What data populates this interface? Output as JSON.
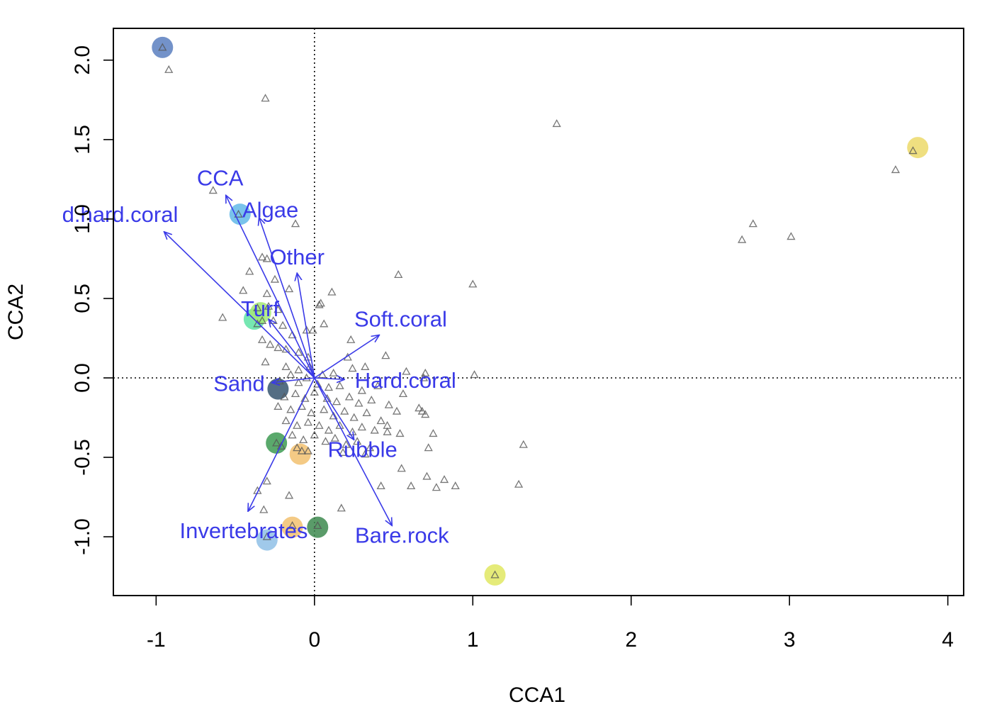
{
  "chart_data": {
    "type": "scatter",
    "title": "",
    "xlabel": "CCA1",
    "ylabel": "CCA2",
    "xlim": [
      -1.27,
      4.1
    ],
    "ylim": [
      -1.37,
      2.2
    ],
    "x_ticks": [
      {
        "value": -1,
        "label": "-1"
      },
      {
        "value": 0,
        "label": "0"
      },
      {
        "value": 1,
        "label": "1"
      },
      {
        "value": 2,
        "label": "2"
      },
      {
        "value": 3,
        "label": "3"
      },
      {
        "value": 4,
        "label": "4"
      }
    ],
    "y_ticks": [
      {
        "value": -1.0,
        "label": "-1.0"
      },
      {
        "value": -0.5,
        "label": "-0.5"
      },
      {
        "value": 0.0,
        "label": "0.0"
      },
      {
        "value": 0.5,
        "label": "0.5"
      },
      {
        "value": 1.0,
        "label": "1.0"
      },
      {
        "value": 1.5,
        "label": "1.5"
      },
      {
        "value": 2.0,
        "label": "2.0"
      }
    ],
    "reference_lines": {
      "x": 0,
      "y": 0,
      "style": "dotted"
    },
    "grid": false,
    "legend": "none",
    "colors": {
      "arrows": "#3a3ae8",
      "points": "#555555"
    },
    "arrows": [
      {
        "label": "CCA",
        "x": -0.56,
        "y": 1.15
      },
      {
        "label": "Algae",
        "x": -0.35,
        "y": 1.01
      },
      {
        "label": "d.hard.coral",
        "x": -0.95,
        "y": 0.92
      },
      {
        "label": "Other",
        "x": -0.11,
        "y": 0.66
      },
      {
        "label": "Turf",
        "x": -0.29,
        "y": 0.37
      },
      {
        "label": "Soft.coral",
        "x": 0.41,
        "y": 0.27
      },
      {
        "label": "Sand",
        "x": -0.27,
        "y": -0.03
      },
      {
        "label": "Hard.coral",
        "x": 0.19,
        "y": -0.01
      },
      {
        "label": "Rubble",
        "x": 0.25,
        "y": -0.39
      },
      {
        "label": "Invertebrates",
        "x": -0.42,
        "y": -0.84
      },
      {
        "label": "Bare.rock",
        "x": 0.49,
        "y": -0.93
      }
    ],
    "highlight_points": [
      {
        "x": -0.96,
        "y": 2.08,
        "color": "#5b7fbf"
      },
      {
        "x": 3.81,
        "y": 1.45,
        "color": "#ecd96a"
      },
      {
        "x": -0.47,
        "y": 1.03,
        "color": "#62b8e8"
      },
      {
        "x": -0.38,
        "y": 0.37,
        "color": "#5ee3a4"
      },
      {
        "x": -0.34,
        "y": 0.41,
        "color": "#a6e876"
      },
      {
        "x": -0.23,
        "y": -0.07,
        "color": "#36556e"
      },
      {
        "x": -0.24,
        "y": -0.41,
        "color": "#3d9a52"
      },
      {
        "x": -0.09,
        "y": -0.48,
        "color": "#f2c170"
      },
      {
        "x": -0.14,
        "y": -0.94,
        "color": "#f2c170"
      },
      {
        "x": 0.02,
        "y": -0.94,
        "color": "#3d8a4f"
      },
      {
        "x": -0.3,
        "y": -1.02,
        "color": "#8fc0e6"
      },
      {
        "x": 1.14,
        "y": -1.24,
        "color": "#e1e861"
      }
    ],
    "site_points": [
      [
        -0.96,
        2.08
      ],
      [
        -0.92,
        1.94
      ],
      [
        -0.31,
        1.76
      ],
      [
        1.53,
        1.6
      ],
      [
        3.78,
        1.43
      ],
      [
        3.67,
        1.31
      ],
      [
        -0.64,
        1.18
      ],
      [
        -0.48,
        1.03
      ],
      [
        -0.12,
        0.97
      ],
      [
        2.77,
        0.97
      ],
      [
        3.01,
        0.89
      ],
      [
        2.7,
        0.87
      ],
      [
        -0.33,
        0.76
      ],
      [
        -0.3,
        0.75
      ],
      [
        -0.41,
        0.67
      ],
      [
        -0.25,
        0.62
      ],
      [
        -0.16,
        0.56
      ],
      [
        0.53,
        0.65
      ],
      [
        1.0,
        0.59
      ],
      [
        -0.45,
        0.55
      ],
      [
        -0.3,
        0.53
      ],
      [
        0.11,
        0.54
      ],
      [
        0.04,
        0.47
      ],
      [
        0.03,
        0.46
      ],
      [
        -0.29,
        0.45
      ],
      [
        -0.23,
        0.43
      ],
      [
        -0.58,
        0.38
      ],
      [
        -0.36,
        0.44
      ],
      [
        -0.33,
        0.36
      ],
      [
        -0.26,
        0.36
      ],
      [
        -0.2,
        0.33
      ],
      [
        -0.14,
        0.27
      ],
      [
        -0.05,
        0.3
      ],
      [
        -0.01,
        0.3
      ],
      [
        0.06,
        0.34
      ],
      [
        0.23,
        0.24
      ],
      [
        -0.33,
        0.24
      ],
      [
        -0.28,
        0.21
      ],
      [
        -0.23,
        0.19
      ],
      [
        -0.18,
        0.18
      ],
      [
        -0.1,
        0.16
      ],
      [
        -0.04,
        0.13
      ],
      [
        -0.31,
        0.1
      ],
      [
        -0.18,
        0.07
      ],
      [
        -0.1,
        0.05
      ],
      [
        -0.03,
        0.07
      ],
      [
        0.21,
        0.13
      ],
      [
        0.45,
        0.14
      ],
      [
        -0.15,
        0.02
      ],
      [
        -0.05,
        0.0
      ],
      [
        0.05,
        0.02
      ],
      [
        0.12,
        0.03
      ],
      [
        0.24,
        0.06
      ],
      [
        0.32,
        0.07
      ],
      [
        0.58,
        0.04
      ],
      [
        0.7,
        0.03
      ],
      [
        0.69,
        0.0
      ],
      [
        1.01,
        0.02
      ],
      [
        -0.22,
        -0.02
      ],
      [
        -0.1,
        -0.03
      ],
      [
        0.02,
        -0.04
      ],
      [
        0.09,
        -0.06
      ],
      [
        0.16,
        -0.05
      ],
      [
        0.3,
        -0.08
      ],
      [
        0.4,
        -0.05
      ],
      [
        0.56,
        -0.1
      ],
      [
        -0.19,
        -0.12
      ],
      [
        -0.12,
        -0.1
      ],
      [
        -0.06,
        -0.13
      ],
      [
        0.0,
        -0.09
      ],
      [
        0.08,
        -0.13
      ],
      [
        0.14,
        -0.15
      ],
      [
        0.22,
        -0.12
      ],
      [
        0.28,
        -0.16
      ],
      [
        0.36,
        -0.14
      ],
      [
        0.47,
        -0.17
      ],
      [
        -0.23,
        -0.18
      ],
      [
        -0.15,
        -0.2
      ],
      [
        -0.08,
        -0.18
      ],
      [
        -0.02,
        -0.22
      ],
      [
        0.06,
        -0.2
      ],
      [
        0.12,
        -0.24
      ],
      [
        0.19,
        -0.21
      ],
      [
        0.25,
        -0.25
      ],
      [
        0.33,
        -0.22
      ],
      [
        0.42,
        -0.27
      ],
      [
        0.52,
        -0.21
      ],
      [
        0.66,
        -0.19
      ],
      [
        0.7,
        -0.23
      ],
      [
        -0.18,
        -0.27
      ],
      [
        -0.11,
        -0.3
      ],
      [
        -0.04,
        -0.28
      ],
      [
        0.03,
        -0.3
      ],
      [
        0.09,
        -0.33
      ],
      [
        0.16,
        -0.3
      ],
      [
        0.24,
        -0.34
      ],
      [
        0.3,
        -0.31
      ],
      [
        0.38,
        -0.33
      ],
      [
        0.46,
        -0.3
      ],
      [
        0.54,
        -0.35
      ],
      [
        0.68,
        -0.21
      ],
      [
        -0.14,
        -0.36
      ],
      [
        -0.07,
        -0.39
      ],
      [
        0.0,
        -0.36
      ],
      [
        0.07,
        -0.4
      ],
      [
        0.13,
        -0.38
      ],
      [
        0.2,
        -0.42
      ],
      [
        0.27,
        -0.4
      ],
      [
        0.35,
        -0.44
      ],
      [
        0.46,
        -0.34
      ],
      [
        0.75,
        -0.35
      ],
      [
        0.72,
        -0.44
      ],
      [
        -0.21,
        -0.43
      ],
      [
        -0.11,
        -0.44
      ],
      [
        -0.04,
        -0.46
      ],
      [
        0.18,
        -0.47
      ],
      [
        0.32,
        -0.48
      ],
      [
        0.55,
        -0.57
      ],
      [
        0.71,
        -0.62
      ],
      [
        0.82,
        -0.64
      ],
      [
        0.89,
        -0.68
      ],
      [
        0.42,
        -0.68
      ],
      [
        0.61,
        -0.68
      ],
      [
        0.77,
        -0.69
      ],
      [
        1.32,
        -0.42
      ],
      [
        1.29,
        -0.67
      ],
      [
        -0.3,
        -0.65
      ],
      [
        -0.36,
        -0.71
      ],
      [
        -0.16,
        -0.74
      ],
      [
        -0.32,
        -0.83
      ],
      [
        0.17,
        -0.82
      ],
      [
        -0.3,
        -1.0
      ],
      [
        0.02,
        -0.93
      ],
      [
        -0.14,
        -0.93
      ],
      [
        1.14,
        -1.24
      ],
      [
        -0.24,
        -0.41
      ],
      [
        -0.08,
        -0.46
      ],
      [
        -0.36,
        0.34
      ]
    ]
  }
}
